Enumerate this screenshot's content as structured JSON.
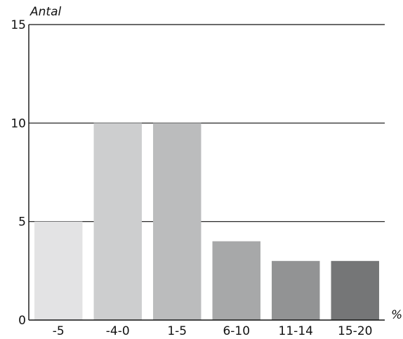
{
  "chart_data": {
    "type": "bar",
    "title": "",
    "ylabel": "Antal",
    "xlabel": "",
    "x_unit_label": "%",
    "categories": [
      "-5",
      "-4-0",
      "1-5",
      "6-10",
      "11-14",
      "15-20"
    ],
    "values": [
      5,
      10,
      10,
      4,
      3,
      3
    ],
    "bar_colors": [
      "#e3e3e4",
      "#cdcecf",
      "#bbbcbd",
      "#a7a8a9",
      "#929394",
      "#757677"
    ],
    "ylim": [
      0,
      15
    ],
    "yticks": [
      0,
      5,
      10,
      15
    ],
    "grid": true,
    "legend": "none"
  }
}
